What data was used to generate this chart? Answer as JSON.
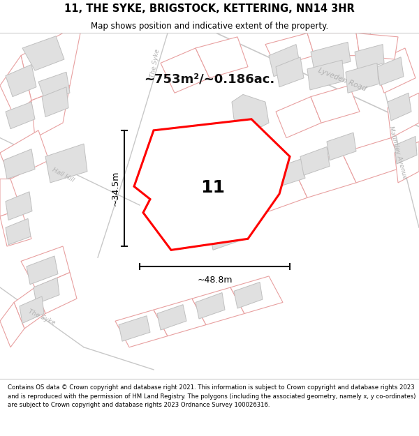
{
  "title": "11, THE SYKE, BRIGSTOCK, KETTERING, NN14 3HR",
  "subtitle": "Map shows position and indicative extent of the property.",
  "footer": "Contains OS data © Crown copyright and database right 2021. This information is subject to Crown copyright and database rights 2023 and is reproduced with the permission of HM Land Registry. The polygons (including the associated geometry, namely x, y co-ordinates) are subject to Crown copyright and database rights 2023 Ordnance Survey 100026316.",
  "area_text": "~753m²/~0.186ac.",
  "label": "11",
  "dim_width": "~48.8m",
  "dim_height": "~34.5m",
  "map_bg": "#ffffff",
  "title_color": "#000000",
  "subtitle_color": "#000000",
  "footer_color": "#000000",
  "plot_outline_color": "#e8a0a0",
  "building_fill": "#e0e0e0",
  "building_edge": "#c0c0c0",
  "road_label_color": "#b0b0b0",
  "highlight_poly_color": "#ff0000",
  "highlight_poly_fill": "#ffffff",
  "dim_line_color": "#111111",
  "area_text_color": "#111111",
  "title_sep_color": "#cccccc",
  "footer_sep_color": "#cccccc"
}
